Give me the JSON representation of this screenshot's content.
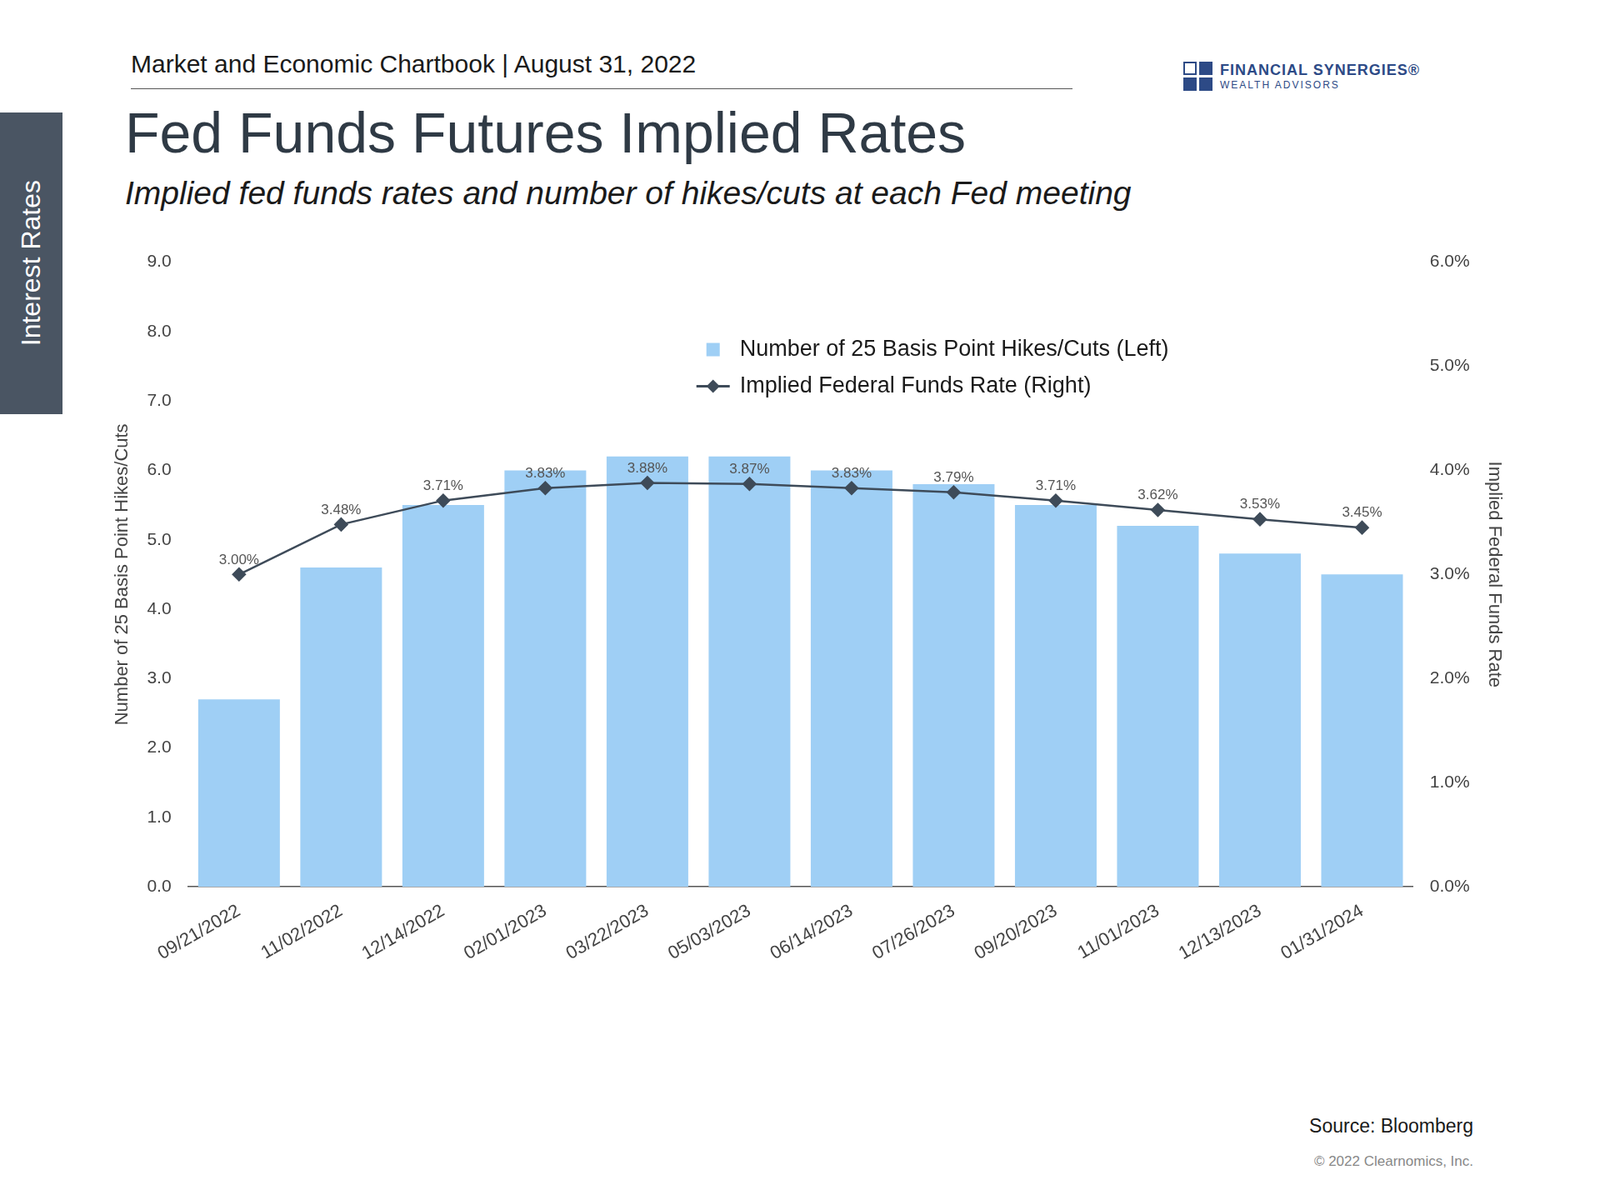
{
  "header": "Market and Economic Chartbook | August 31, 2022",
  "logo": {
    "name": "FINANCIAL SYNERGIES®",
    "tagline": "WEALTH ADVISORS"
  },
  "side_tab": "Interest Rates",
  "source": "Source: Bloomberg",
  "copyright": "© 2022 Clearnomics, Inc.",
  "chart_data": {
    "type": "bar",
    "title": "Fed Funds Futures Implied Rates",
    "subtitle": "Implied fed funds rates and number of hikes/cuts at each Fed meeting",
    "categories": [
      "09/21/2022",
      "11/02/2022",
      "12/14/2022",
      "02/01/2023",
      "03/22/2023",
      "05/03/2023",
      "06/14/2023",
      "07/26/2023",
      "09/20/2023",
      "11/01/2023",
      "12/13/2023",
      "01/31/2024"
    ],
    "series": [
      {
        "name": "Number of 25 Basis Point Hikes/Cuts (Left)",
        "type": "bar",
        "color": "#9fcff5",
        "values": [
          2.7,
          4.6,
          5.5,
          6.0,
          6.2,
          6.2,
          6.0,
          5.8,
          5.5,
          5.2,
          4.8,
          4.5
        ]
      },
      {
        "name": "Implied Federal Funds Rate (Right)",
        "type": "line",
        "color": "#3e4b59",
        "marker": "diamond",
        "axis": "y2",
        "data_labels": true,
        "values": [
          3.0,
          3.48,
          3.71,
          3.83,
          3.88,
          3.87,
          3.83,
          3.79,
          3.71,
          3.62,
          3.53,
          3.45
        ],
        "value_labels": [
          "3.00%",
          "3.48%",
          "3.71%",
          "3.83%",
          "3.88%",
          "3.87%",
          "3.83%",
          "3.79%",
          "3.71%",
          "3.62%",
          "3.53%",
          "3.45%"
        ]
      }
    ],
    "ylabel": "Number of 25 Basis Point Hikes/Cuts",
    "y2label": "Implied Federal Funds Rate",
    "ylim": [
      0,
      9
    ],
    "yticks": [
      {
        "value": 0,
        "label": "0.0"
      },
      {
        "value": 1,
        "label": "1.0"
      },
      {
        "value": 2,
        "label": "2.0"
      },
      {
        "value": 3,
        "label": "3.0"
      },
      {
        "value": 4,
        "label": "4.0"
      },
      {
        "value": 5,
        "label": "5.0"
      },
      {
        "value": 6,
        "label": "6.0"
      },
      {
        "value": 7,
        "label": "7.0"
      },
      {
        "value": 8,
        "label": "8.0"
      },
      {
        "value": 9,
        "label": "9.0"
      }
    ],
    "y2lim": [
      0,
      6
    ],
    "y2ticks": [
      {
        "value": 0,
        "label": "0.0%"
      },
      {
        "value": 1,
        "label": "1.0%"
      },
      {
        "value": 2,
        "label": "2.0%"
      },
      {
        "value": 3,
        "label": "3.0%"
      },
      {
        "value": 4,
        "label": "4.0%"
      },
      {
        "value": 5,
        "label": "5.0%"
      },
      {
        "value": 6,
        "label": "6.0%"
      }
    ],
    "grid": false,
    "legend": "top"
  }
}
